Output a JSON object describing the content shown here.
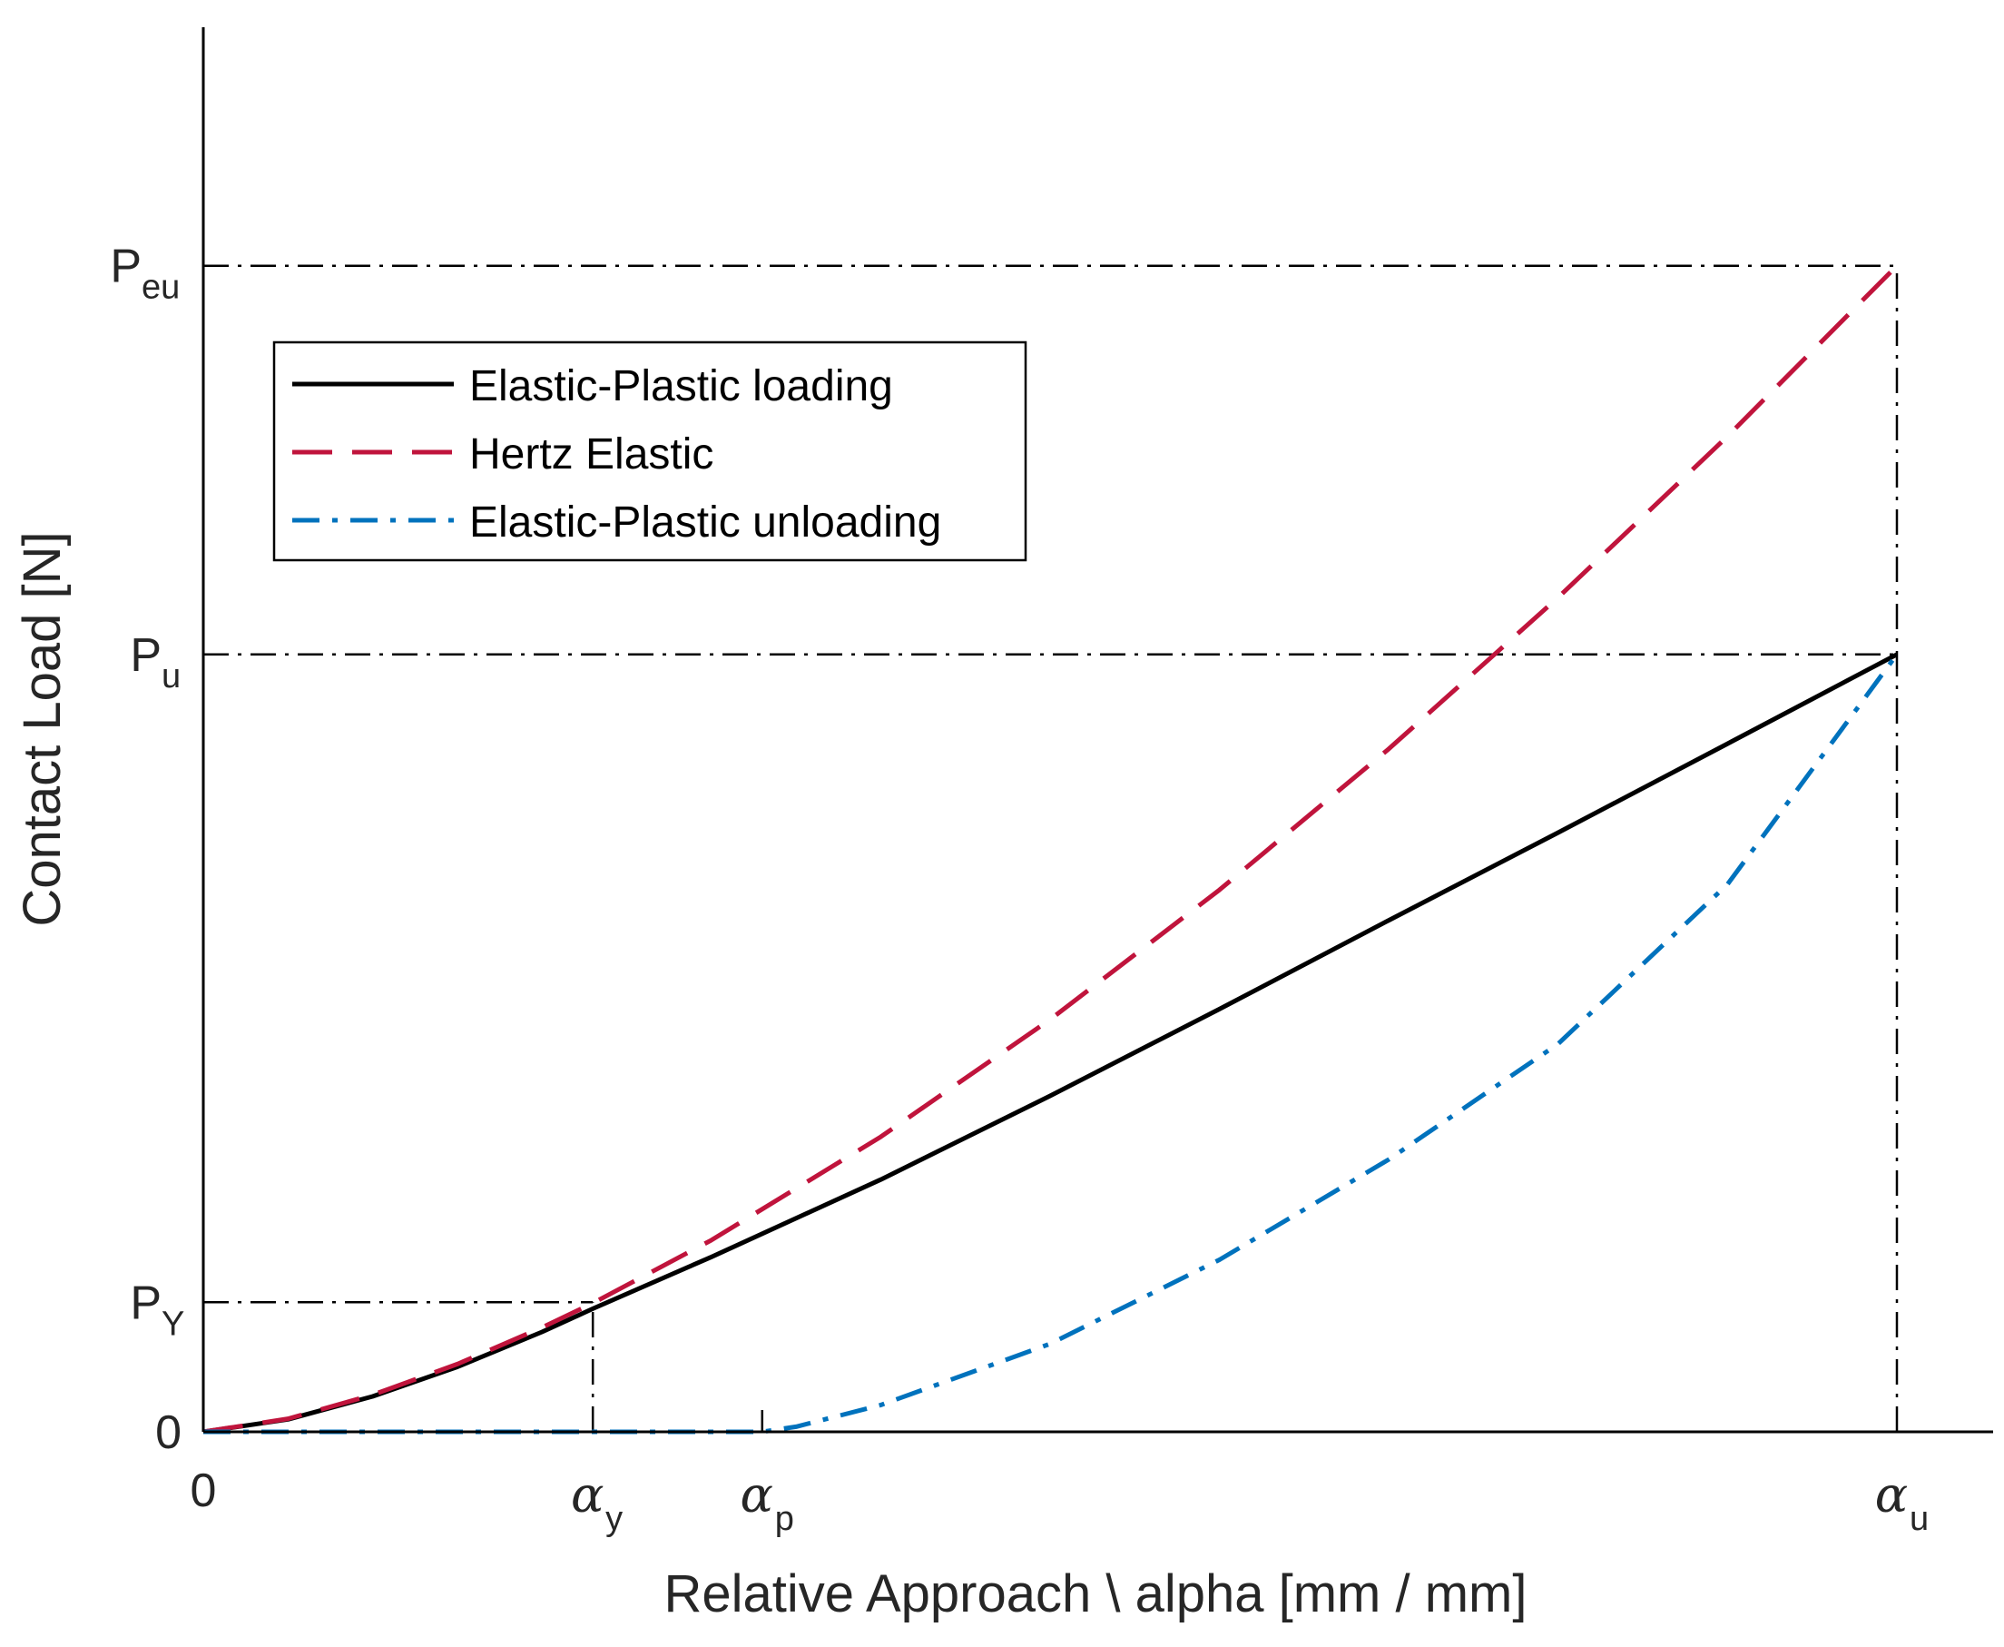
{
  "chart_data": {
    "type": "line",
    "xlabel": "Relative Approach \\ alpha [mm / mm]",
    "ylabel": "Contact Load [N]",
    "xlim": [
      0,
      1.0
    ],
    "ylim": [
      0,
      1.0
    ],
    "x_ticks": [
      {
        "value": 0,
        "label": "0",
        "greek": "",
        "sub": ""
      },
      {
        "value": 0.23,
        "label": "",
        "greek": "α",
        "sub": "y"
      },
      {
        "value": 0.33,
        "label": "",
        "greek": "α",
        "sub": "p"
      },
      {
        "value": 1.0,
        "label": "",
        "greek": "α",
        "sub": "u"
      }
    ],
    "y_ticks": [
      {
        "value": 0,
        "label": "0",
        "sub": ""
      },
      {
        "value": 0.1,
        "label": "P",
        "sub": "Y"
      },
      {
        "value": 0.6,
        "label": "P",
        "sub": "u"
      },
      {
        "value": 0.9,
        "label": "P",
        "sub": "eu"
      }
    ],
    "guides": [
      {
        "kind": "h",
        "y": 0.9,
        "x_end": 1.0
      },
      {
        "kind": "h",
        "y": 0.6,
        "x_end": 1.0
      },
      {
        "kind": "h",
        "y": 0.1,
        "x_end": 0.23
      },
      {
        "kind": "v",
        "x": 0.23,
        "y_end": 0.1
      },
      {
        "kind": "v",
        "x": 1.0,
        "y_end": 0.9
      },
      {
        "kind": "tick",
        "x": 0.33
      }
    ],
    "series": [
      {
        "name": "Elastic-Plastic loading",
        "color": "#000000",
        "style": "solid",
        "x": [
          0,
          0.05,
          0.1,
          0.15,
          0.2,
          0.23,
          0.3,
          0.4,
          0.5,
          0.6,
          0.7,
          0.8,
          0.9,
          1.0
        ],
        "y": [
          0,
          0.0096,
          0.0273,
          0.0501,
          0.0771,
          0.095,
          0.135,
          0.1947,
          0.2593,
          0.3263,
          0.3948,
          0.4625,
          0.5311,
          0.6
        ]
      },
      {
        "name": "Hertz Elastic",
        "color": "#c0143c",
        "style": "dashed",
        "x": [
          0,
          0.05,
          0.1,
          0.15,
          0.2,
          0.23,
          0.3,
          0.4,
          0.5,
          0.6,
          0.7,
          0.8,
          0.9,
          1.0
        ],
        "y": [
          0,
          0.0101,
          0.0285,
          0.0523,
          0.0805,
          0.0993,
          0.1479,
          0.2277,
          0.3182,
          0.4183,
          0.5271,
          0.644,
          0.7684,
          0.9
        ]
      },
      {
        "name": "Elastic-Plastic unloading",
        "color": "#0072bd",
        "style": "dashdot",
        "x": [
          0,
          0.1,
          0.2,
          0.3,
          0.33,
          0.35,
          0.4,
          0.5,
          0.6,
          0.7,
          0.8,
          0.9,
          1.0
        ],
        "y": [
          0,
          0,
          0,
          0,
          0,
          0.0039,
          0.0207,
          0.0679,
          0.1328,
          0.2102,
          0.2995,
          0.4226,
          0.6
        ]
      }
    ],
    "legend": {
      "position": "upper-left"
    }
  }
}
